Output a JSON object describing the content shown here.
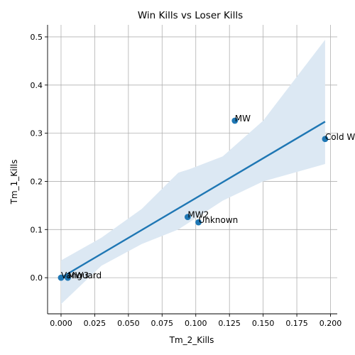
{
  "chart_data": {
    "type": "scatter",
    "title": "Win Kills vs Loser Kills",
    "xlabel": "Tm_2_Kills",
    "ylabel": "Tm_1_Kills",
    "xlim": [
      -0.01,
      0.205
    ],
    "ylim": [
      -0.075,
      0.525
    ],
    "xticks": [
      0.0,
      0.025,
      0.05,
      0.075,
      0.1,
      0.125,
      0.15,
      0.175,
      0.2
    ],
    "xtick_labels": [
      "0.000",
      "0.025",
      "0.050",
      "0.075",
      "0.100",
      "0.125",
      "0.150",
      "0.175",
      "0.200"
    ],
    "yticks": [
      0.0,
      0.1,
      0.2,
      0.3,
      0.4,
      0.5
    ],
    "ytick_labels": [
      "0.0",
      "0.1",
      "0.2",
      "0.3",
      "0.4",
      "0.5"
    ],
    "grid": true,
    "points": [
      {
        "label": "Vanguard",
        "x": 0.0,
        "y": 0.0
      },
      {
        "label": "MW3",
        "x": 0.005,
        "y": 0.0
      },
      {
        "label": "MW2",
        "x": 0.094,
        "y": 0.126
      },
      {
        "label": "Unknown",
        "x": 0.102,
        "y": 0.115
      },
      {
        "label": "MW",
        "x": 0.129,
        "y": 0.326
      },
      {
        "label": "Cold War",
        "x": 0.196,
        "y": 0.288
      }
    ],
    "regression": {
      "line": [
        [
          0.0,
          0.0
        ],
        [
          0.196,
          0.324
        ]
      ],
      "ci_upper": [
        [
          0.0,
          0.036
        ],
        [
          0.03,
          0.083
        ],
        [
          0.06,
          0.143
        ],
        [
          0.087,
          0.218
        ],
        [
          0.095,
          0.225
        ],
        [
          0.12,
          0.252
        ],
        [
          0.15,
          0.326
        ],
        [
          0.196,
          0.494
        ]
      ],
      "ci_lower": [
        [
          0.0,
          -0.055
        ],
        [
          0.03,
          0.025
        ],
        [
          0.06,
          0.07
        ],
        [
          0.087,
          0.1
        ],
        [
          0.12,
          0.16
        ],
        [
          0.15,
          0.2
        ],
        [
          0.196,
          0.236
        ]
      ]
    },
    "colors": {
      "points": "#1f77b4",
      "line": "#1f77b4",
      "band": "#dce8f3",
      "grid": "#b0b0b0"
    }
  }
}
